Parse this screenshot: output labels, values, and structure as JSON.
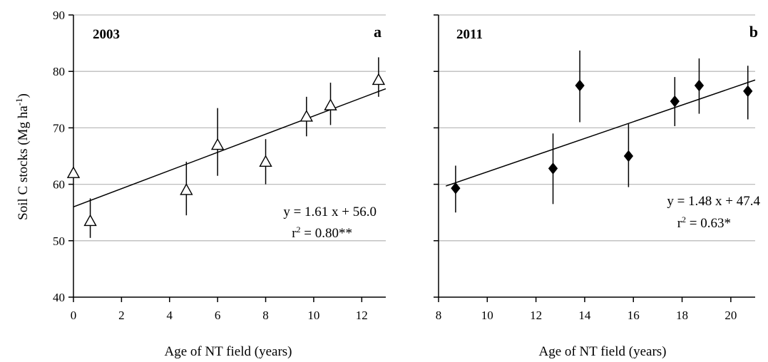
{
  "figure": {
    "ylabel_main": "Soil  C stocks  (Mg ha",
    "ylabel_sup": "-1",
    "ylabel_end": ")"
  },
  "chart_data": [
    {
      "type": "scatter",
      "title": "2003",
      "panel_label": "a",
      "xlabel": "Age of  NT field  (years)",
      "ylabel": "Soil C stocks (Mg ha-1)",
      "xlim": [
        0,
        13
      ],
      "ylim": [
        40,
        90
      ],
      "xticks": [
        0,
        2,
        4,
        6,
        8,
        10,
        12
      ],
      "yticks": [
        40,
        50,
        60,
        70,
        80,
        90
      ],
      "ytick_labels_visible": true,
      "grid": "horizontal",
      "marker": "open-triangle",
      "points": [
        {
          "x": 0,
          "y": 62,
          "err_low": null,
          "err_high": null
        },
        {
          "x": 0.7,
          "y": 53.5,
          "err_low": 50.5,
          "err_high": 57.5
        },
        {
          "x": 4.7,
          "y": 59,
          "err_low": 54.5,
          "err_high": 64
        },
        {
          "x": 6,
          "y": 67,
          "err_low": 61.5,
          "err_high": 73.5
        },
        {
          "x": 8,
          "y": 64,
          "err_low": 60,
          "err_high": 68
        },
        {
          "x": 9.7,
          "y": 72,
          "err_low": 68.5,
          "err_high": 75.5
        },
        {
          "x": 10.7,
          "y": 74,
          "err_low": 70.5,
          "err_high": 78
        },
        {
          "x": 12.7,
          "y": 78.5,
          "err_low": 75.5,
          "err_high": 82.5
        }
      ],
      "fit": {
        "slope": 1.61,
        "intercept": 56.0,
        "x_from": 0,
        "x_to": 13
      },
      "equation": "y = 1.61 x + 56.0",
      "r2_prefix": "r",
      "r2_sup": "2",
      "r2_suffix": " = 0.80**"
    },
    {
      "type": "scatter",
      "title": "2011",
      "panel_label": "b",
      "xlabel": "Age of  NT field  (years)",
      "ylabel": "",
      "xlim": [
        8,
        21
      ],
      "ylim": [
        40,
        90
      ],
      "xticks": [
        8,
        10,
        12,
        14,
        16,
        18,
        20
      ],
      "yticks": [
        40,
        50,
        60,
        70,
        80,
        90
      ],
      "ytick_labels_visible": false,
      "grid": "horizontal",
      "marker": "filled-diamond",
      "points": [
        {
          "x": 8.7,
          "y": 59.3,
          "err_low": 55,
          "err_high": 63.3
        },
        {
          "x": 12.7,
          "y": 62.8,
          "err_low": 56.5,
          "err_high": 69
        },
        {
          "x": 13.8,
          "y": 77.5,
          "err_low": 71,
          "err_high": 83.7
        },
        {
          "x": 15.8,
          "y": 65,
          "err_low": 59.5,
          "err_high": 70.7
        },
        {
          "x": 17.7,
          "y": 74.7,
          "err_low": 70.3,
          "err_high": 79
        },
        {
          "x": 18.7,
          "y": 77.5,
          "err_low": 72.5,
          "err_high": 82.3
        },
        {
          "x": 20.7,
          "y": 76.5,
          "err_low": 71.5,
          "err_high": 81
        }
      ],
      "fit": {
        "slope": 1.48,
        "intercept": 47.4,
        "x_from": 8.3,
        "x_to": 21
      },
      "equation": "y = 1.48 x + 47.4",
      "r2_prefix": "r",
      "r2_sup": "2",
      "r2_suffix": " = 0.63*"
    }
  ]
}
